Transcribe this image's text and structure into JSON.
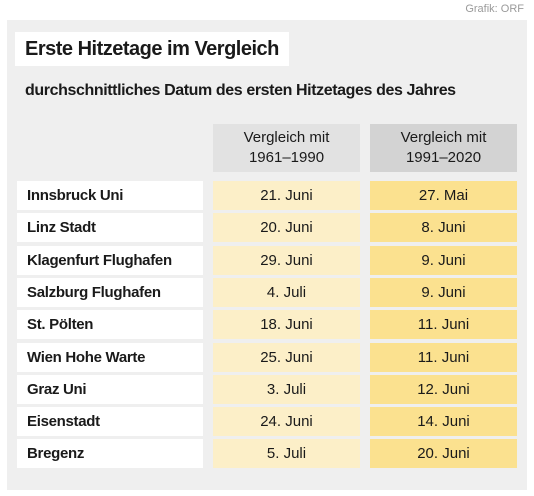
{
  "credit": "Grafik: ORF",
  "title": "Erste Hitzetage im Vergleich",
  "subtitle": "durchschnittliches Datum des ersten Hitzetages des Jahres",
  "table": {
    "columns": [
      [
        "Vergleich mit",
        "1961–1990"
      ],
      [
        "Vergleich mit",
        "1991–2020"
      ]
    ],
    "rows": [
      [
        "Innsbruck Uni",
        "21. Juni",
        "27. Mai"
      ],
      [
        "Linz Stadt",
        "20. Juni",
        "8. Juni"
      ],
      [
        "Klagenfurt Flughafen",
        "29. Juni",
        "9. Juni"
      ],
      [
        "Salzburg Flughafen",
        "4. Juli",
        "9. Juni"
      ],
      [
        "St. Pölten",
        "18. Juni",
        "11. Juni"
      ],
      [
        "Wien Hohe Warte",
        "25. Juni",
        "11. Juni"
      ],
      [
        "Graz Uni",
        "3. Juli",
        "12. Juni"
      ],
      [
        "Eisenstadt",
        "24. Juni",
        "14. Juni"
      ],
      [
        "Bregenz",
        "5. Juli",
        "20. Juni"
      ]
    ]
  }
}
